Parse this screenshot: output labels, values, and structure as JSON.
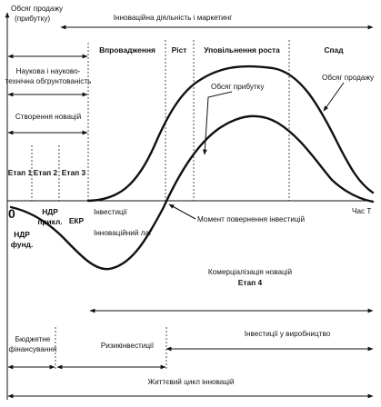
{
  "labels": {
    "sales_volume_axis": [
      "Обсяг продажу",
      "(прибутку)"
    ],
    "innovation_marketing": "Інноваційна діяльність і маркетинг",
    "introduction": "Впровадження",
    "growth": "Ріст",
    "slowing_growth": "Уповільнення роста",
    "decline": "Спад",
    "research_substantiation": [
      "Наукова і науково-",
      "технічна обгрунтованість"
    ],
    "sales_volume": "Обсяг продажу",
    "profit_volume": "Обсяг прибутку",
    "creation_of_innovations": "Створення новацій",
    "stage1": "Етап 1",
    "stage2": "Етап 2",
    "stage3": "Етап 3",
    "zero": "0",
    "applied_rd": [
      "НДР",
      "прикл."
    ],
    "ekr": "ЕКР",
    "investments": "Інвестиції",
    "innovation_lag": "Інноваційний лаг",
    "payback_moment": "Момент повернення інвестицій",
    "time_axis": "Час Т",
    "fundamental_rd": [
      "НДР",
      "фунд."
    ],
    "commercialization": "Комерціалізація новацій",
    "stage4": "Етап 4",
    "budget_financing": [
      "Бюджетне",
      "фінансування"
    ],
    "risk_investments": "Ризикінвестиції",
    "production_investments": "Інвестиції у виробництво",
    "life_cycle": "Життєвий цикл інновацій"
  },
  "icons": {
    "arrow": "arrowhead"
  }
}
